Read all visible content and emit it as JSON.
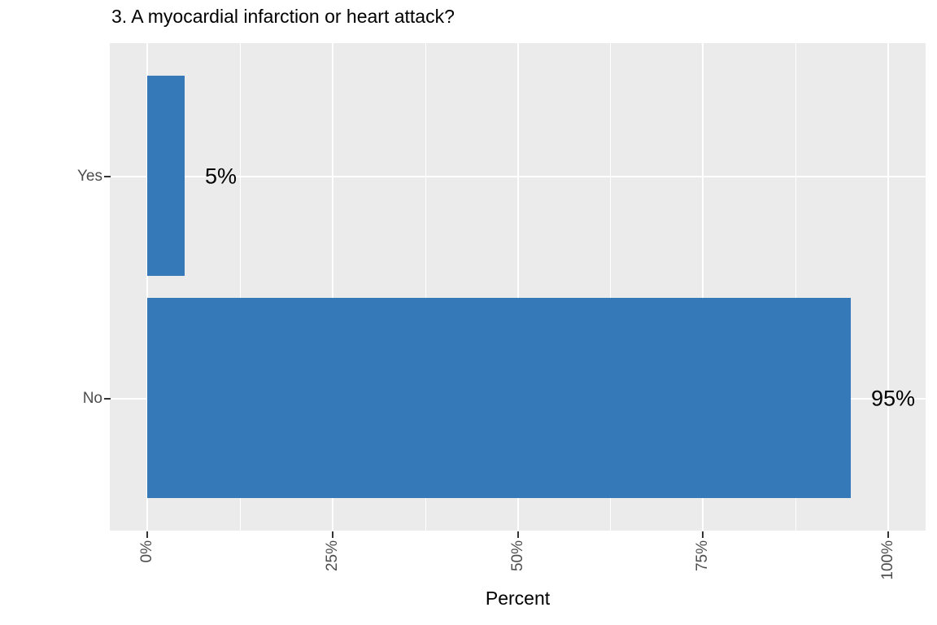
{
  "chart_data": {
    "type": "bar",
    "orientation": "horizontal",
    "title": "3. A myocardial infarction or heart attack?",
    "categories": [
      "Yes",
      "No"
    ],
    "values": [
      5,
      95
    ],
    "bar_labels": [
      "5%",
      "95%"
    ],
    "xlabel": "Percent",
    "ylabel": "",
    "x_ticks": [
      "0%",
      "25%",
      "50%",
      "75%",
      "100%"
    ],
    "x_tick_values": [
      0,
      25,
      50,
      75,
      100
    ],
    "xlim": [
      0,
      100
    ],
    "legend": "none",
    "grid": "white major and minor vertical lines, white major horizontal lines on gray panel",
    "colors": {
      "bar": "#3579b8",
      "panel_background": "#ebebeb",
      "gridline": "#ffffff",
      "axis_text": "#4d4d4d",
      "tick_mark": "#333333",
      "title_text": "#000000",
      "figure_background": "#ffffff"
    }
  }
}
